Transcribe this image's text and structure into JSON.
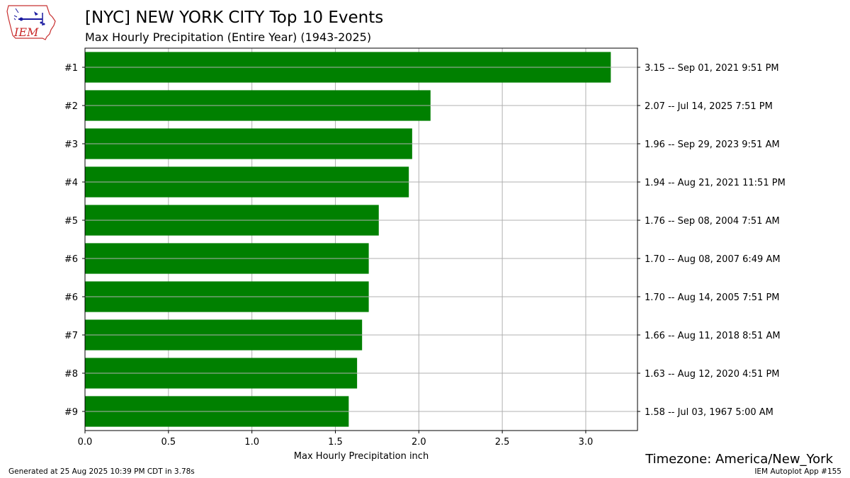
{
  "logo": {
    "text": "IEM"
  },
  "header": {
    "title": "[NYC] NEW YORK CITY Top 10 Events",
    "subtitle": "Max Hourly Precipitation  (Entire Year) (1943-2025)"
  },
  "chart_data": {
    "type": "bar",
    "orientation": "horizontal",
    "categories": [
      "#1",
      "#2",
      "#3",
      "#4",
      "#5",
      "#6",
      "#6",
      "#7",
      "#8",
      "#9"
    ],
    "values": [
      3.15,
      2.07,
      1.96,
      1.94,
      1.76,
      1.7,
      1.7,
      1.66,
      1.63,
      1.58
    ],
    "right_labels": [
      "3.15 -- Sep 01, 2021 9:51 PM",
      "2.07 -- Jul 14, 2025 7:51 PM",
      "1.96 -- Sep 29, 2023 9:51 AM",
      "1.94 -- Aug 21, 2021 11:51 PM",
      "1.76 -- Sep 08, 2004 7:51 AM",
      "1.70 -- Aug 08, 2007 6:49 AM",
      "1.70 -- Aug 14, 2005 7:51 PM",
      "1.66 -- Aug 11, 2018 8:51 AM",
      "1.63 -- Aug 12, 2020 4:51 PM",
      "1.58 -- Jul 03, 1967 5:00 AM"
    ],
    "xlabel": "Max Hourly Precipitation inch",
    "xlim": [
      0,
      3.31
    ],
    "xticks": [
      0.0,
      0.5,
      1.0,
      1.5,
      2.0,
      2.5,
      3.0
    ],
    "xtick_labels": [
      "0.0",
      "0.5",
      "1.0",
      "1.5",
      "2.0",
      "2.5",
      "3.0"
    ],
    "grid": true,
    "bar_color": "#008000"
  },
  "footer": {
    "timezone": "Timezone: America/New_York",
    "generated": "Generated at 25 Aug 2025 10:39 PM CDT in 3.78s",
    "app": "IEM Autoplot App #155"
  }
}
